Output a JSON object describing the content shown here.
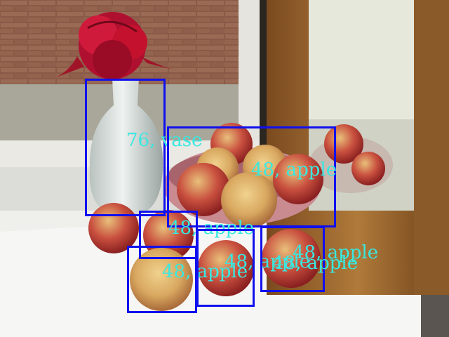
{
  "image": {
    "description_icon": "photo-still-life",
    "colors": {
      "box": "#1010ee",
      "label": "#38e8e0"
    }
  },
  "detections": [
    {
      "label": "76, vase"
    },
    {
      "label": "48, apple"
    },
    {
      "label": "48, apple"
    },
    {
      "label": "48, apple"
    },
    {
      "label": "48, apple"
    },
    {
      "label": "48, apple"
    },
    {
      "label": "48, apple"
    }
  ]
}
